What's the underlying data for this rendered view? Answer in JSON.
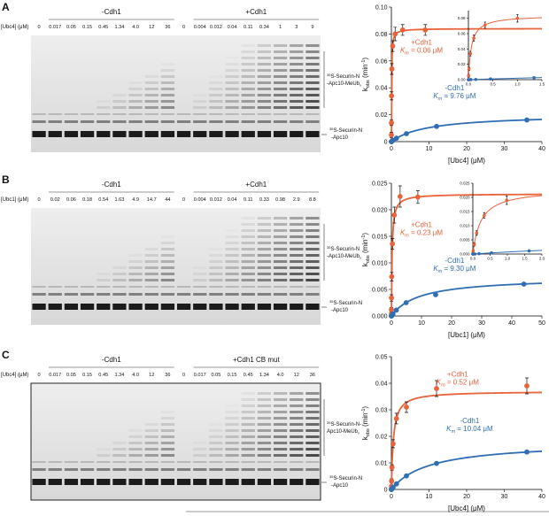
{
  "panels": [
    {
      "label": "A",
      "conc_label": "[Ubc4] (μM)",
      "groups": [
        "-Cdh1",
        "+Cdh1"
      ],
      "lanes": [
        "0",
        "0.017",
        "0.05",
        "0.15",
        "0.45",
        "1.34",
        "4.0",
        "12",
        "36",
        "0",
        "0.004",
        "0.012",
        "0.04",
        "0.11",
        "0.34",
        "1",
        "3",
        "9"
      ],
      "ladder": {
        "sup": "35",
        "line1": "S-Securin-N",
        "line2": "-Apc10-MeUb",
        "sub": "x"
      },
      "substrate": {
        "sup": "35",
        "line1": "S-Securin-N",
        "line2": "-Apc10"
      }
    },
    {
      "label": "B",
      "conc_label": "[Ubc1] (μM)",
      "groups": [
        "-Cdh1",
        "+Cdh1"
      ],
      "lanes": [
        "0",
        "0.02",
        "0.06",
        "0.18",
        "0.54",
        "1.63",
        "4.9",
        "14.7",
        "44",
        "0",
        "0.004",
        "0.012",
        "0.04",
        "0.11",
        "0.33",
        "0.98",
        "2.9",
        "8.8"
      ],
      "ladder": {
        "sup": "35",
        "line1": "S-Securin-N",
        "line2": "-Apc10-MeUb",
        "sub": "x"
      },
      "substrate": {
        "sup": "35",
        "line1": "S-Securin-N",
        "line2": "-Apc10"
      }
    },
    {
      "label": "C",
      "conc_label": "[Ubc4] (μM)",
      "groups": [
        "-Cdh1",
        "+Cdh1 CB mut"
      ],
      "lanes": [
        "0",
        "0.017",
        "0.05",
        "0.15",
        "0.45",
        "1.34",
        "4.0",
        "12",
        "36",
        "0",
        "0.017",
        "0.05",
        "0.15",
        "0.45",
        "1.34",
        "4.0",
        "12",
        "36"
      ],
      "ladder": {
        "sup": "35",
        "line1": "S-Securin-N-",
        "line2": "Apc10-MeUb",
        "sub": "x"
      },
      "substrate": {
        "sup": "35",
        "line1": "S-Securin-N",
        "line2": "-Apc10"
      }
    }
  ],
  "chart_data": [
    {
      "type": "scatter",
      "x_label": "[Ubc4] (μM)",
      "y_label": [
        "k",
        "obs",
        " (min",
        "-1",
        ")"
      ],
      "km_symbol": [
        "K",
        "m"
      ],
      "xlim": [
        0,
        40
      ],
      "xticks": [
        0,
        10,
        20,
        30,
        40
      ],
      "ylim": [
        0,
        0.1
      ],
      "yticks": [
        0,
        0.02,
        0.04,
        0.06,
        0.08,
        {
          "value": 0.1,
          "label": "0.10"
        }
      ],
      "series": [
        {
          "name": "+Cdh1",
          "color": "#e8623a",
          "km": 0.06,
          "km_label": " = 0.06 μM",
          "vmax": 0.084,
          "x": [
            0,
            0.004,
            0.012,
            0.04,
            0.11,
            0.34,
            1,
            3,
            9
          ],
          "values": [
            0,
            0.005,
            0.014,
            0.034,
            0.054,
            0.071,
            0.08,
            0.083,
            0.083
          ],
          "errors": [
            null,
            0.002,
            0.002,
            0.003,
            0.004,
            0.004,
            0.005,
            0.004,
            0.004
          ]
        },
        {
          "name": "-Cdh1",
          "color": "#2f6eb5",
          "km": 9.76,
          "km_label": " = 9.76 μM",
          "vmax": 0.0205,
          "x": [
            0,
            0.017,
            0.05,
            0.15,
            0.45,
            1.34,
            4,
            12,
            36
          ],
          "values": [
            0,
            0,
            0.0001,
            0.0003,
            0.0009,
            0.0025,
            0.0059,
            0.0113,
            0.0161
          ],
          "errors": [
            null,
            null,
            null,
            null,
            null,
            null,
            null,
            null,
            null
          ]
        }
      ]
    },
    {
      "type": "scatter",
      "xlim": [
        0,
        1.5
      ],
      "xticks": [
        {
          "value": 0,
          "label": "0.0"
        },
        0.5,
        {
          "value": 1,
          "label": "1.0"
        },
        1.5
      ],
      "ylim": [
        0,
        0.09
      ],
      "yticks": [
        {
          "value": 0,
          "label": "0.00"
        },
        0.02,
        0.04,
        0.06,
        0.08
      ],
      "series": [
        {
          "color": "#e8623a",
          "km": 0.06,
          "vmax": 0.084,
          "x": [
            0,
            0.004,
            0.012,
            0.04,
            0.11,
            0.34,
            1
          ],
          "values": [
            0,
            0.005,
            0.014,
            0.034,
            0.054,
            0.071,
            0.08
          ],
          "errors": [
            null,
            0.002,
            0.002,
            0.003,
            0.004,
            0.004,
            0.005
          ]
        },
        {
          "color": "#2f6eb5",
          "km": 9.76,
          "vmax": 0.0205,
          "x": [
            0,
            0.017,
            0.05,
            0.15,
            0.45,
            1.34
          ],
          "values": [
            0,
            0,
            0.0001,
            0.0003,
            0.0009,
            0.0025
          ],
          "errors": [
            null,
            null,
            null,
            null,
            null,
            null
          ]
        }
      ]
    },
    {
      "type": "scatter",
      "x_label": "[Ubc1] (μM)",
      "y_label": [
        "k",
        "obs",
        " (min",
        "-1",
        ")"
      ],
      "km_symbol": [
        "K",
        "m"
      ],
      "xlim": [
        0,
        50
      ],
      "xticks": [
        0,
        10,
        20,
        30,
        40,
        50
      ],
      "ylim": [
        0,
        0.025
      ],
      "yticks": [
        {
          "value": 0,
          "label": "0.000"
        },
        0.005,
        {
          "value": 0.01,
          "label": "0.010"
        },
        0.015,
        {
          "value": 0.02,
          "label": "0.020"
        },
        0.025
      ],
      "series": [
        {
          "name": "+Cdh1",
          "color": "#e8623a",
          "km": 0.23,
          "km_label": " = 0.23 μM",
          "vmax": 0.023,
          "x": [
            0,
            0.004,
            0.012,
            0.04,
            0.11,
            0.33,
            0.98,
            2.9,
            8.8
          ],
          "values": [
            0,
            0.0004,
            0.0012,
            0.0034,
            0.0074,
            0.0136,
            0.019,
            0.0225,
            0.0224
          ],
          "errors": [
            null,
            0.0003,
            0.0004,
            0.0006,
            0.0008,
            0.001,
            0.0015,
            0.002,
            0.0012
          ]
        },
        {
          "name": "-Cdh1",
          "color": "#2f6eb5",
          "km": 9.3,
          "km_label": " = 9.30 μM",
          "vmax": 0.0073,
          "x": [
            0,
            0.02,
            0.06,
            0.18,
            0.54,
            1.63,
            4.9,
            14.7,
            44
          ],
          "values": [
            0,
            0,
            0,
            0.0001,
            0.0004,
            0.0011,
            0.0025,
            0.004,
            0.006
          ],
          "errors": [
            null,
            null,
            null,
            null,
            null,
            null,
            null,
            null,
            null
          ]
        }
      ]
    },
    {
      "type": "scatter",
      "xlim": [
        0,
        2
      ],
      "xticks": [
        {
          "value": 0,
          "label": "0.0"
        },
        0.5,
        {
          "value": 1,
          "label": "1.0"
        },
        1.5,
        {
          "value": 2,
          "label": "2.0"
        }
      ],
      "ylim": [
        0,
        0.025
      ],
      "yticks": [
        {
          "value": 0,
          "label": "0.000"
        },
        0.005,
        {
          "value": 0.01,
          "label": "0.010"
        },
        0.015,
        {
          "value": 0.02,
          "label": "0.020"
        },
        0.025
      ],
      "series": [
        {
          "color": "#e8623a",
          "km": 0.23,
          "vmax": 0.023,
          "x": [
            0,
            0.004,
            0.012,
            0.04,
            0.11,
            0.33,
            0.98
          ],
          "values": [
            0,
            0.0004,
            0.0012,
            0.0034,
            0.0074,
            0.0136,
            0.019
          ],
          "errors": [
            null,
            0.0003,
            0.0004,
            0.0006,
            0.0008,
            0.001,
            0.0015
          ]
        },
        {
          "color": "#2f6eb5",
          "km": 9.3,
          "vmax": 0.0073,
          "x": [
            0,
            0.02,
            0.06,
            0.18,
            0.54,
            1.63
          ],
          "values": [
            0,
            0,
            0,
            0.0001,
            0.0004,
            0.0011
          ],
          "errors": [
            null,
            null,
            null,
            null,
            null,
            null
          ]
        }
      ]
    },
    {
      "type": "scatter",
      "x_label": "[Ubc4] (μM)",
      "y_label": [
        "k",
        "obs",
        " (min",
        "-1",
        ")"
      ],
      "km_symbol": [
        "K",
        "m"
      ],
      "xlim": [
        0,
        40
      ],
      "xticks": [
        0,
        10,
        20,
        30,
        40
      ],
      "ylim": [
        0,
        0.05
      ],
      "yticks": [
        0,
        0.01,
        0.02,
        0.03,
        0.04,
        0.05
      ],
      "series": [
        {
          "name": "+Cdh1",
          "color": "#e8623a",
          "km": 0.52,
          "km_label": " = 0.52 μM",
          "vmax": 0.037,
          "x": [
            0,
            0.017,
            0.05,
            0.15,
            0.45,
            1.34,
            4,
            12,
            36
          ],
          "values": [
            0,
            0.0012,
            0.0032,
            0.0083,
            0.0172,
            0.0267,
            0.031,
            0.038,
            0.039
          ],
          "errors": [
            null,
            0.0005,
            0.0008,
            0.001,
            0.0015,
            0.002,
            0.002,
            0.003,
            0.003
          ]
        },
        {
          "name": "-Cdh1",
          "color": "#2f6eb5",
          "km": 10.04,
          "km_label": " = 10.04 μM",
          "vmax": 0.018,
          "x": [
            0,
            0.017,
            0.05,
            0.15,
            0.45,
            1.34,
            4,
            12,
            36
          ],
          "values": [
            0,
            0,
            0.0001,
            0.0003,
            0.0008,
            0.0021,
            0.0051,
            0.0098,
            0.0141
          ],
          "errors": [
            null,
            null,
            null,
            null,
            null,
            null,
            null,
            null,
            null
          ]
        }
      ]
    }
  ]
}
